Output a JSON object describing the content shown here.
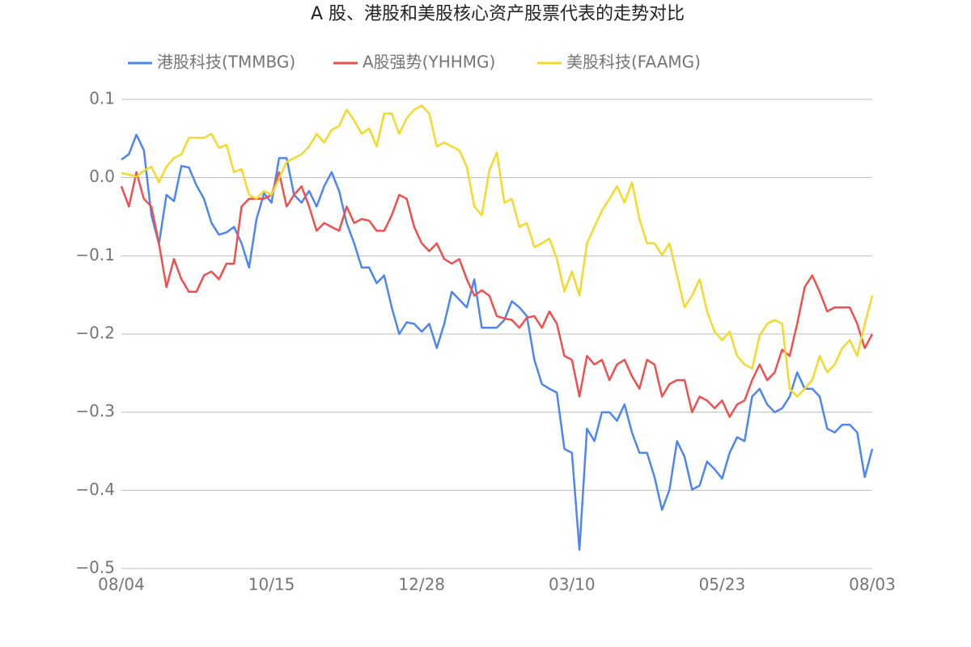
{
  "chart_data": {
    "type": "line",
    "title": "A 股、港股和美股核心资产股票代表的走势对比",
    "categories": [
      "08/04",
      null,
      null,
      null,
      null,
      null,
      null,
      null,
      null,
      null,
      null,
      null,
      null,
      null,
      null,
      null,
      null,
      null,
      null,
      null,
      "10/15",
      null,
      null,
      null,
      null,
      null,
      null,
      null,
      null,
      null,
      null,
      null,
      null,
      null,
      null,
      null,
      null,
      null,
      null,
      null,
      "12/28",
      null,
      null,
      null,
      null,
      null,
      null,
      null,
      null,
      null,
      null,
      null,
      null,
      null,
      null,
      null,
      null,
      null,
      null,
      null,
      "03/10",
      null,
      null,
      null,
      null,
      null,
      null,
      null,
      null,
      null,
      null,
      null,
      null,
      null,
      null,
      null,
      null,
      null,
      null,
      null,
      "05/23",
      null,
      null,
      null,
      null,
      null,
      null,
      null,
      null,
      null,
      null,
      null,
      null,
      null,
      null,
      null,
      null,
      null,
      null,
      null,
      "08/03"
    ],
    "series": [
      {
        "name": "港股科技(TMMBG)",
        "color": "#4e86ee",
        "values": [
          0.023,
          0.03,
          0.055,
          0.035,
          -0.048,
          -0.085,
          -0.022,
          -0.03,
          0.015,
          0.013,
          -0.01,
          -0.027,
          -0.058,
          -0.073,
          -0.07,
          -0.063,
          -0.084,
          -0.115,
          -0.053,
          -0.02,
          -0.032,
          0.025,
          0.025,
          -0.022,
          -0.032,
          -0.017,
          -0.037,
          -0.011,
          0.007,
          -0.017,
          -0.058,
          -0.084,
          -0.115,
          -0.115,
          -0.135,
          -0.125,
          -0.166,
          -0.2,
          -0.185,
          -0.187,
          -0.197,
          -0.187,
          -0.218,
          -0.187,
          -0.146,
          -0.156,
          -0.166,
          -0.13,
          -0.192,
          -0.192,
          -0.192,
          -0.182,
          -0.158,
          -0.166,
          -0.177,
          -0.233,
          -0.264,
          -0.27,
          -0.275,
          -0.347,
          -0.352,
          -0.476,
          -0.321,
          -0.337,
          -0.3,
          -0.3,
          -0.311,
          -0.29,
          -0.326,
          -0.352,
          -0.352,
          -0.383,
          -0.425,
          -0.399,
          -0.337,
          -0.357,
          -0.399,
          -0.394,
          -0.363,
          -0.373,
          -0.385,
          -0.352,
          -0.332,
          -0.337,
          -0.28,
          -0.27,
          -0.29,
          -0.3,
          -0.295,
          -0.28,
          -0.249,
          -0.27,
          -0.27,
          -0.28,
          -0.321,
          -0.326,
          -0.316,
          -0.316,
          -0.326,
          -0.383,
          -0.347
        ]
      },
      {
        "name": "A股强势(YHHMG)",
        "color": "#ee5050",
        "values": [
          -0.011,
          -0.037,
          0.007,
          -0.027,
          -0.037,
          -0.084,
          -0.14,
          -0.104,
          -0.13,
          -0.146,
          -0.146,
          -0.125,
          -0.12,
          -0.13,
          -0.11,
          -0.11,
          -0.037,
          -0.027,
          -0.027,
          -0.027,
          -0.022,
          0.007,
          -0.037,
          -0.022,
          -0.011,
          -0.037,
          -0.068,
          -0.058,
          -0.063,
          -0.068,
          -0.037,
          -0.058,
          -0.053,
          -0.055,
          -0.068,
          -0.068,
          -0.048,
          -0.022,
          -0.027,
          -0.063,
          -0.084,
          -0.094,
          -0.084,
          -0.104,
          -0.11,
          -0.104,
          -0.13,
          -0.151,
          -0.144,
          -0.151,
          -0.177,
          -0.18,
          -0.182,
          -0.192,
          -0.179,
          -0.177,
          -0.192,
          -0.171,
          -0.187,
          -0.228,
          -0.233,
          -0.28,
          -0.228,
          -0.239,
          -0.233,
          -0.259,
          -0.239,
          -0.233,
          -0.254,
          -0.27,
          -0.233,
          -0.239,
          -0.28,
          -0.264,
          -0.259,
          -0.259,
          -0.3,
          -0.28,
          -0.285,
          -0.295,
          -0.285,
          -0.306,
          -0.29,
          -0.285,
          -0.259,
          -0.239,
          -0.259,
          -0.249,
          -0.22,
          -0.228,
          -0.187,
          -0.14,
          -0.125,
          -0.146,
          -0.171,
          -0.166,
          -0.166,
          -0.166,
          -0.187,
          -0.218,
          -0.2
        ]
      },
      {
        "name": "美股科技(FAAMG)",
        "color": "#f4d82a",
        "values": [
          0.006,
          0.004,
          0.001,
          0.009,
          0.014,
          -0.006,
          0.014,
          0.025,
          0.03,
          0.051,
          0.051,
          0.051,
          0.056,
          0.038,
          0.042,
          0.007,
          0.011,
          -0.022,
          -0.027,
          -0.017,
          -0.022,
          -0.001,
          0.02,
          0.025,
          0.03,
          0.04,
          0.056,
          0.045,
          0.061,
          0.066,
          0.087,
          0.073,
          0.056,
          0.063,
          0.04,
          0.082,
          0.082,
          0.056,
          0.076,
          0.087,
          0.092,
          0.082,
          0.04,
          0.045,
          0.04,
          0.035,
          0.014,
          -0.037,
          -0.048,
          0.009,
          0.032,
          -0.032,
          -0.027,
          -0.063,
          -0.058,
          -0.089,
          -0.084,
          -0.078,
          -0.104,
          -0.146,
          -0.12,
          -0.151,
          -0.084,
          -0.063,
          -0.042,
          -0.027,
          -0.011,
          -0.032,
          -0.006,
          -0.053,
          -0.084,
          -0.084,
          -0.099,
          -0.084,
          -0.125,
          -0.166,
          -0.151,
          -0.13,
          -0.171,
          -0.197,
          -0.208,
          -0.197,
          -0.228,
          -0.239,
          -0.244,
          -0.202,
          -0.187,
          -0.182,
          -0.187,
          -0.27,
          -0.28,
          -0.27,
          -0.259,
          -0.228,
          -0.249,
          -0.239,
          -0.218,
          -0.208,
          -0.228,
          -0.187,
          -0.151
        ]
      }
    ],
    "ylim": [
      -0.5,
      0.1
    ],
    "yticks": [
      {
        "value": -0.5,
        "label": "−0.5"
      },
      {
        "value": -0.4,
        "label": "−0.4"
      },
      {
        "value": -0.3,
        "label": "−0.3"
      },
      {
        "value": -0.2,
        "label": "−0.2"
      },
      {
        "value": -0.1,
        "label": "−0.1"
      },
      {
        "value": 0,
        "label": "0.0"
      },
      0.1
    ],
    "grid": true,
    "legend": "top"
  }
}
